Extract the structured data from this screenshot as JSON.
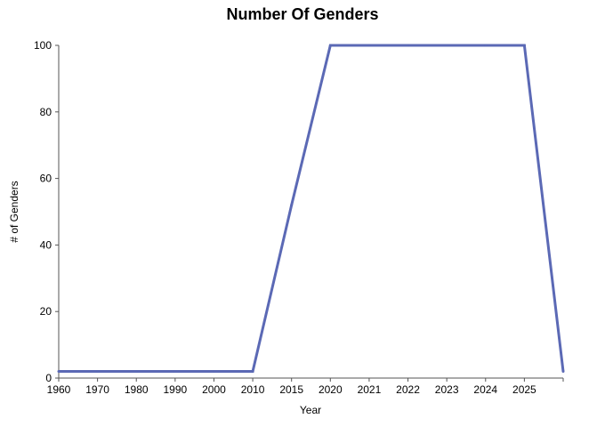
{
  "chart_data": {
    "type": "line",
    "title": "Number Of Genders",
    "xlabel": "Year",
    "ylabel": "# of Genders",
    "categories": [
      "1960",
      "1970",
      "1980",
      "1990",
      "2000",
      "2010",
      "2015",
      "2020",
      "2021",
      "2022",
      "2023",
      "2024",
      "2025",
      ""
    ],
    "series": [
      {
        "values": [
          2,
          2,
          2,
          2,
          2,
          2,
          52,
          100,
          100,
          100,
          100,
          100,
          100,
          2
        ]
      }
    ],
    "y_ticks": [
      "0",
      "20",
      "40",
      "60",
      "80",
      "100"
    ],
    "ylim": [
      0,
      100
    ],
    "grid": false,
    "legend": "none",
    "colors": {
      "line": "#5b69b5",
      "axis": "#555555",
      "text": "#000000",
      "title": "#000000"
    }
  }
}
